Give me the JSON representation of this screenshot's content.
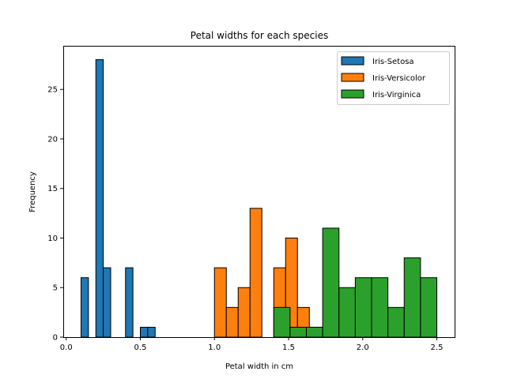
{
  "chart_data": {
    "type": "bar",
    "title": "Petal widths for each species",
    "xlabel": "Petal width in cm",
    "ylabel": "Frequency",
    "xlim": [
      -0.02,
      2.62
    ],
    "ylim": [
      0,
      29.4
    ],
    "xticks": [
      "0.0",
      "0.5",
      "1.0",
      "1.5",
      "2.0",
      "2.5"
    ],
    "yticks": [
      "0",
      "5",
      "10",
      "15",
      "20",
      "25"
    ],
    "grid": false,
    "legend_position": "top-right",
    "series": [
      {
        "name": "Iris-Setosa",
        "color": "#1f77b4",
        "bins": [
          {
            "x0": 0.1,
            "x1": 0.15,
            "count": 6
          },
          {
            "x0": 0.15,
            "x1": 0.2,
            "count": 0
          },
          {
            "x0": 0.2,
            "x1": 0.25,
            "count": 28
          },
          {
            "x0": 0.25,
            "x1": 0.3,
            "count": 7
          },
          {
            "x0": 0.3,
            "x1": 0.35,
            "count": 0
          },
          {
            "x0": 0.35,
            "x1": 0.4,
            "count": 0
          },
          {
            "x0": 0.4,
            "x1": 0.45,
            "count": 7
          },
          {
            "x0": 0.45,
            "x1": 0.5,
            "count": 0
          },
          {
            "x0": 0.5,
            "x1": 0.55,
            "count": 1
          },
          {
            "x0": 0.55,
            "x1": 0.6,
            "count": 1
          }
        ]
      },
      {
        "name": "Iris-Versicolor",
        "color": "#ff7f0e",
        "bins": [
          {
            "x0": 1.0,
            "x1": 1.08,
            "count": 7
          },
          {
            "x0": 1.08,
            "x1": 1.16,
            "count": 3
          },
          {
            "x0": 1.16,
            "x1": 1.24,
            "count": 5
          },
          {
            "x0": 1.24,
            "x1": 1.32,
            "count": 13
          },
          {
            "x0": 1.32,
            "x1": 1.4,
            "count": 0
          },
          {
            "x0": 1.4,
            "x1": 1.48,
            "count": 7
          },
          {
            "x0": 1.48,
            "x1": 1.56,
            "count": 10
          },
          {
            "x0": 1.56,
            "x1": 1.64,
            "count": 3
          },
          {
            "x0": 1.64,
            "x1": 1.72,
            "count": 1
          },
          {
            "x0": 1.72,
            "x1": 1.8,
            "count": 1
          }
        ]
      },
      {
        "name": "Iris-Virginica",
        "color": "#2ca02c",
        "bins": [
          {
            "x0": 1.4,
            "x1": 1.51,
            "count": 3
          },
          {
            "x0": 1.51,
            "x1": 1.62,
            "count": 1
          },
          {
            "x0": 1.62,
            "x1": 1.73,
            "count": 1
          },
          {
            "x0": 1.73,
            "x1": 1.84,
            "count": 11
          },
          {
            "x0": 1.84,
            "x1": 1.95,
            "count": 5
          },
          {
            "x0": 1.95,
            "x1": 2.06,
            "count": 6
          },
          {
            "x0": 2.06,
            "x1": 2.17,
            "count": 6
          },
          {
            "x0": 2.17,
            "x1": 2.28,
            "count": 3
          },
          {
            "x0": 2.28,
            "x1": 2.39,
            "count": 8
          },
          {
            "x0": 2.39,
            "x1": 2.5,
            "count": 6
          }
        ]
      }
    ]
  }
}
